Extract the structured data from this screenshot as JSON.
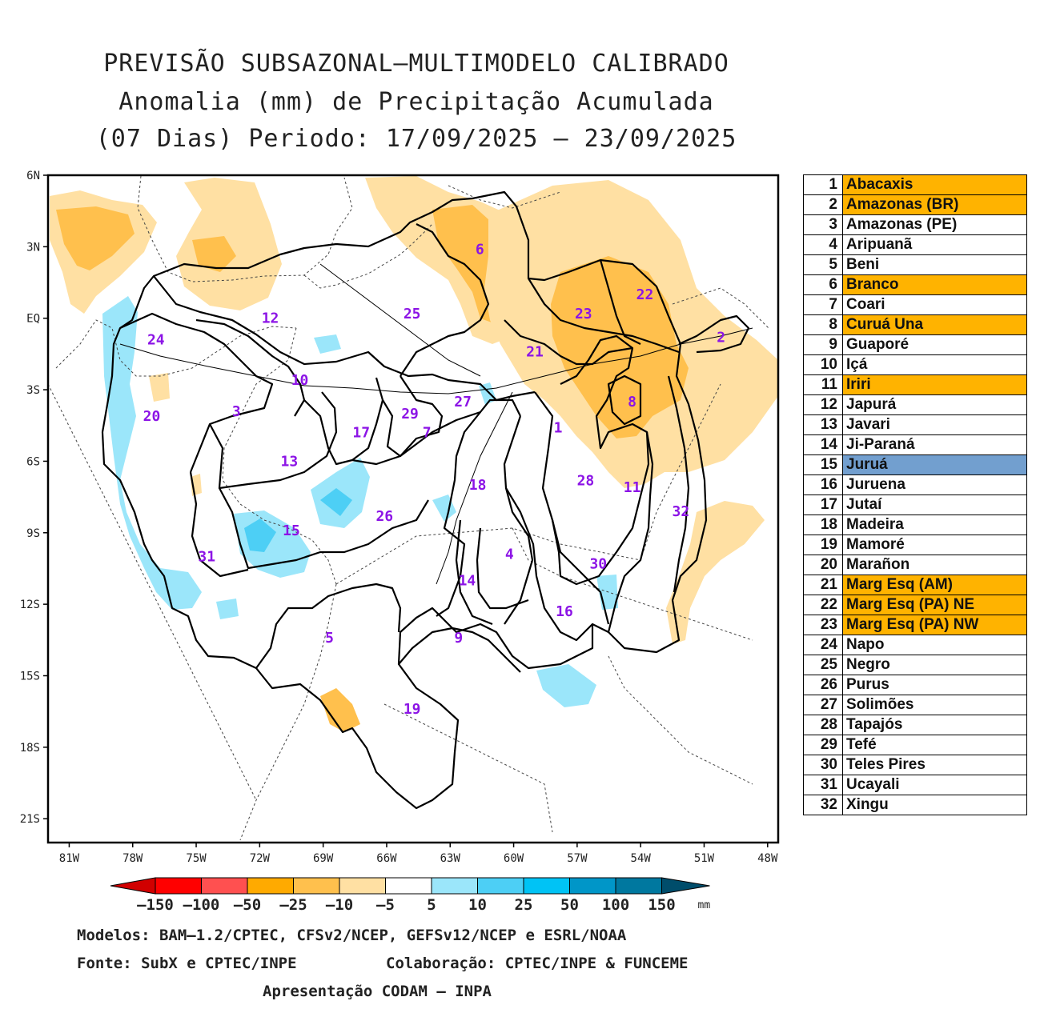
{
  "title": {
    "line1": "PREVISÃO SUBSAZONAL–MULTIMODELO CALIBRADO",
    "line2": "Anomalia (mm) de Precipitação Acumulada",
    "line3": "(07 Dias) Periodo: 17/09/2025 – 23/09/2025"
  },
  "map": {
    "lat_labels": [
      "6N",
      "3N",
      "EQ",
      "3S",
      "6S",
      "9S",
      "12S",
      "15S",
      "18S",
      "21S"
    ],
    "lon_labels": [
      "81W",
      "78W",
      "75W",
      "72W",
      "69W",
      "66W",
      "63W",
      "60W",
      "57W",
      "54W",
      "51W",
      "48W"
    ],
    "basin_labels": [
      {
        "n": "1",
        "lon": -57.9,
        "lat": -4.6
      },
      {
        "n": "2",
        "lon": -50.2,
        "lat": -0.8
      },
      {
        "n": "3",
        "lon": -73.1,
        "lat": -3.9
      },
      {
        "n": "4",
        "lon": -60.2,
        "lat": -9.9
      },
      {
        "n": "5",
        "lon": -68.7,
        "lat": -13.4
      },
      {
        "n": "6",
        "lon": -61.6,
        "lat": 2.9
      },
      {
        "n": "7",
        "lon": -64.1,
        "lat": -4.8
      },
      {
        "n": "8",
        "lon": -54.4,
        "lat": -3.5
      },
      {
        "n": "9",
        "lon": -62.6,
        "lat": -13.4
      },
      {
        "n": "10",
        "lon": -70.1,
        "lat": -2.6
      },
      {
        "n": "11",
        "lon": -54.4,
        "lat": -7.1
      },
      {
        "n": "12",
        "lon": -71.5,
        "lat": 0.0
      },
      {
        "n": "13",
        "lon": -70.6,
        "lat": -6.0
      },
      {
        "n": "14",
        "lon": -62.2,
        "lat": -11.0
      },
      {
        "n": "15",
        "lon": -70.5,
        "lat": -8.9
      },
      {
        "n": "16",
        "lon": -57.6,
        "lat": -12.3
      },
      {
        "n": "17",
        "lon": -67.2,
        "lat": -4.8
      },
      {
        "n": "18",
        "lon": -61.7,
        "lat": -7.0
      },
      {
        "n": "19",
        "lon": -64.8,
        "lat": -16.4
      },
      {
        "n": "20",
        "lon": -77.1,
        "lat": -4.1
      },
      {
        "n": "21",
        "lon": -59.0,
        "lat": -1.4
      },
      {
        "n": "22",
        "lon": -53.8,
        "lat": 1.0
      },
      {
        "n": "23",
        "lon": -56.7,
        "lat": 0.2
      },
      {
        "n": "24",
        "lon": -76.9,
        "lat": -0.9
      },
      {
        "n": "25",
        "lon": -64.8,
        "lat": 0.2
      },
      {
        "n": "26",
        "lon": -66.1,
        "lat": -8.3
      },
      {
        "n": "27",
        "lon": -62.4,
        "lat": -3.5
      },
      {
        "n": "28",
        "lon": -56.6,
        "lat": -6.8
      },
      {
        "n": "29",
        "lon": -64.9,
        "lat": -4.0
      },
      {
        "n": "30",
        "lon": -56.0,
        "lat": -10.3
      },
      {
        "n": "31",
        "lon": -74.5,
        "lat": -10.0
      },
      {
        "n": "32",
        "lon": -52.1,
        "lat": -8.1
      }
    ]
  },
  "legend": [
    {
      "n": "1",
      "name": "Abacaxis",
      "color": "#ffb300"
    },
    {
      "n": "2",
      "name": "Amazonas (BR)",
      "color": "#ffb300"
    },
    {
      "n": "3",
      "name": "Amazonas (PE)",
      "color": "#ffffff"
    },
    {
      "n": "4",
      "name": "Aripuanã",
      "color": "#ffffff"
    },
    {
      "n": "5",
      "name": "Beni",
      "color": "#ffffff"
    },
    {
      "n": "6",
      "name": "Branco",
      "color": "#ffb300"
    },
    {
      "n": "7",
      "name": "Coari",
      "color": "#ffffff"
    },
    {
      "n": "8",
      "name": "Curuá Una",
      "color": "#ffb300"
    },
    {
      "n": "9",
      "name": "Guaporé",
      "color": "#ffffff"
    },
    {
      "n": "10",
      "name": "Içá",
      "color": "#ffffff"
    },
    {
      "n": "11",
      "name": "Iriri",
      "color": "#ffb300"
    },
    {
      "n": "12",
      "name": "Japurá",
      "color": "#ffffff"
    },
    {
      "n": "13",
      "name": "Javari",
      "color": "#ffffff"
    },
    {
      "n": "14",
      "name": "Ji-Paraná",
      "color": "#ffffff"
    },
    {
      "n": "15",
      "name": "Juruá",
      "color": "#729fcf"
    },
    {
      "n": "16",
      "name": "Juruena",
      "color": "#ffffff"
    },
    {
      "n": "17",
      "name": "Jutaí",
      "color": "#ffffff"
    },
    {
      "n": "18",
      "name": "Madeira",
      "color": "#ffffff"
    },
    {
      "n": "19",
      "name": "Mamoré",
      "color": "#ffffff"
    },
    {
      "n": "20",
      "name": "Marañon",
      "color": "#ffffff"
    },
    {
      "n": "21",
      "name": "Marg Esq (AM)",
      "color": "#ffb300"
    },
    {
      "n": "22",
      "name": "Marg Esq (PA) NE",
      "color": "#ffb300"
    },
    {
      "n": "23",
      "name": "Marg Esq (PA) NW",
      "color": "#ffb300"
    },
    {
      "n": "24",
      "name": "Napo",
      "color": "#ffffff"
    },
    {
      "n": "25",
      "name": "Negro",
      "color": "#ffffff"
    },
    {
      "n": "26",
      "name": "Purus",
      "color": "#ffffff"
    },
    {
      "n": "27",
      "name": "Solimões",
      "color": "#ffffff"
    },
    {
      "n": "28",
      "name": "Tapajós",
      "color": "#ffffff"
    },
    {
      "n": "29",
      "name": "Tefé",
      "color": "#ffffff"
    },
    {
      "n": "30",
      "name": "Teles Pires",
      "color": "#ffffff"
    },
    {
      "n": "31",
      "name": "Ucayali",
      "color": "#ffffff"
    },
    {
      "n": "32",
      "name": "Xingu",
      "color": "#ffffff"
    }
  ],
  "colorbar": {
    "labels": [
      "–150",
      "–100",
      "–50",
      "–25",
      "–10",
      "–5",
      "5",
      "10",
      "25",
      "50",
      "100",
      "150"
    ],
    "colors": [
      "#ff0000",
      "#ff5050",
      "#ffaa00",
      "#ffc04d",
      "#ffe0a3",
      "#ffffff",
      "#9be6fa",
      "#4dcff5",
      "#00c3f5",
      "#0096c8",
      "#00789f"
    ],
    "end_left": "#d10000",
    "end_right": "#004d6b",
    "unit": "mm"
  },
  "footer": {
    "models": "Modelos: BAM–1.2/CPTEC, CFSv2/NCEP, GEFSv12/NCEP e ESRL/NOAA",
    "source": "Fonte: SubX e CPTEC/INPE",
    "collab": "Colaboração: CPTEC/INPE & FUNCEME",
    "presentation": "Apresentação CODAM – INPA"
  }
}
